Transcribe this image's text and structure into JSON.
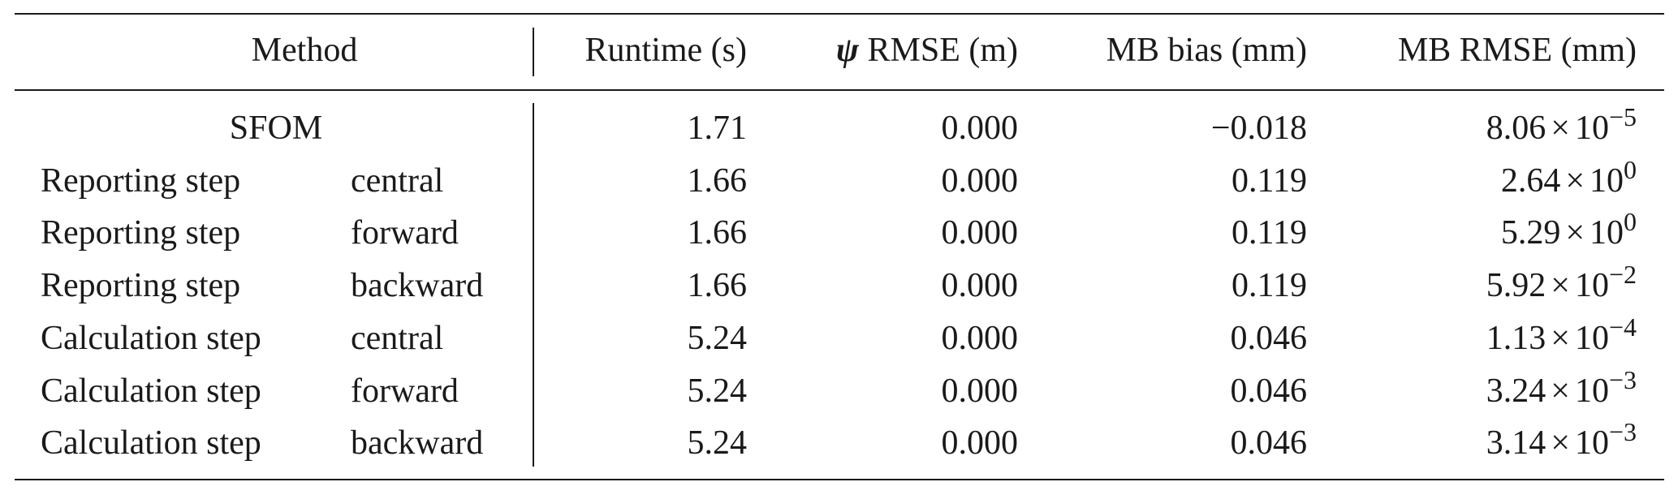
{
  "header": {
    "method": "Method",
    "runtime": "Runtime (s)",
    "psi_symbol": "ψ",
    "psi_rmse": " RMSE (m)",
    "mb_bias": "MB bias (mm)",
    "mb_rmse": "MB RMSE (mm)"
  },
  "rows": [
    {
      "method": "SFOM",
      "scheme": "",
      "runtime": "1.71",
      "psi_rmse": "0.000",
      "mb_bias": "−0.018",
      "mb_rmse_mantissa": "8.06",
      "mb_rmse_times": "×",
      "mb_rmse_base": "10",
      "mb_rmse_exp": "−5"
    },
    {
      "method": "Reporting step",
      "scheme": "central",
      "runtime": "1.66",
      "psi_rmse": "0.000",
      "mb_bias": "0.119",
      "mb_rmse_mantissa": "2.64",
      "mb_rmse_times": "×",
      "mb_rmse_base": "10",
      "mb_rmse_exp": "0"
    },
    {
      "method": "Reporting step",
      "scheme": "forward",
      "runtime": "1.66",
      "psi_rmse": "0.000",
      "mb_bias": "0.119",
      "mb_rmse_mantissa": "5.29",
      "mb_rmse_times": "×",
      "mb_rmse_base": "10",
      "mb_rmse_exp": "0"
    },
    {
      "method": "Reporting step",
      "scheme": "backward",
      "runtime": "1.66",
      "psi_rmse": "0.000",
      "mb_bias": "0.119",
      "mb_rmse_mantissa": "5.92",
      "mb_rmse_times": "×",
      "mb_rmse_base": "10",
      "mb_rmse_exp": "−2"
    },
    {
      "method": "Calculation step",
      "scheme": "central",
      "runtime": "5.24",
      "psi_rmse": "0.000",
      "mb_bias": "0.046",
      "mb_rmse_mantissa": "1.13",
      "mb_rmse_times": "×",
      "mb_rmse_base": "10",
      "mb_rmse_exp": "−4"
    },
    {
      "method": "Calculation step",
      "scheme": "forward",
      "runtime": "5.24",
      "psi_rmse": "0.000",
      "mb_bias": "0.046",
      "mb_rmse_mantissa": "3.24",
      "mb_rmse_times": "×",
      "mb_rmse_base": "10",
      "mb_rmse_exp": "−3"
    },
    {
      "method": "Calculation step",
      "scheme": "backward",
      "runtime": "5.24",
      "psi_rmse": "0.000",
      "mb_bias": "0.046",
      "mb_rmse_mantissa": "3.14",
      "mb_rmse_times": "×",
      "mb_rmse_base": "10",
      "mb_rmse_exp": "−3"
    }
  ]
}
